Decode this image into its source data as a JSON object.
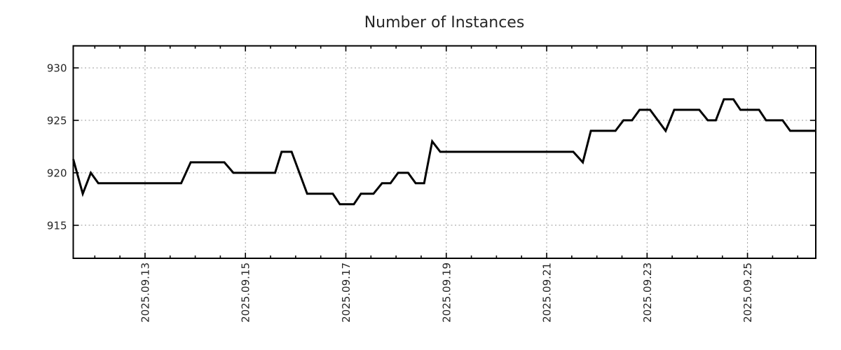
{
  "chart_data": {
    "type": "line",
    "title": "Number of Instances",
    "series_name": "number-of-instances",
    "legend": "none",
    "grid": "dotted",
    "x_axis": {
      "unit": "date (September 2025, day-of-month as decimal)",
      "range": [
        11.57,
        26.36
      ],
      "major_ticks": [
        {
          "day": 13,
          "label": "2025.09.13"
        },
        {
          "day": 15,
          "label": "2025.09.15"
        },
        {
          "day": 17,
          "label": "2025.09.17"
        },
        {
          "day": 19,
          "label": "2025.09.19"
        },
        {
          "day": 21,
          "label": "2025.09.21"
        },
        {
          "day": 23,
          "label": "2025.09.23"
        },
        {
          "day": 25,
          "label": "2025.09.25"
        }
      ],
      "minor_tick_interval_days": 0.5,
      "label_rotation_deg": -90
    },
    "y_axis": {
      "range": [
        911.85,
        932.1
      ],
      "ticks": [
        915,
        920,
        925,
        930
      ]
    },
    "points": [
      [
        11.57,
        921.3
      ],
      [
        11.76,
        918
      ],
      [
        11.92,
        920
      ],
      [
        12.07,
        919
      ],
      [
        13.72,
        919
      ],
      [
        13.91,
        921
      ],
      [
        14.58,
        921
      ],
      [
        14.76,
        920
      ],
      [
        15.59,
        920
      ],
      [
        15.72,
        922
      ],
      [
        15.92,
        922
      ],
      [
        16.23,
        918
      ],
      [
        16.74,
        918
      ],
      [
        16.88,
        917
      ],
      [
        17.16,
        917
      ],
      [
        17.3,
        918
      ],
      [
        17.55,
        918
      ],
      [
        17.72,
        919
      ],
      [
        17.89,
        919
      ],
      [
        18.04,
        920
      ],
      [
        18.24,
        920
      ],
      [
        18.39,
        919
      ],
      [
        18.56,
        919
      ],
      [
        18.72,
        923
      ],
      [
        18.88,
        922
      ],
      [
        21.53,
        922
      ],
      [
        21.72,
        921
      ],
      [
        21.88,
        924
      ],
      [
        22.37,
        924
      ],
      [
        22.53,
        925
      ],
      [
        22.7,
        925
      ],
      [
        22.85,
        926
      ],
      [
        23.06,
        926
      ],
      [
        23.37,
        924
      ],
      [
        23.54,
        926
      ],
      [
        24.04,
        926
      ],
      [
        24.21,
        925
      ],
      [
        24.37,
        925
      ],
      [
        24.53,
        927
      ],
      [
        24.72,
        927
      ],
      [
        24.86,
        926
      ],
      [
        25.23,
        926
      ],
      [
        25.37,
        925
      ],
      [
        25.7,
        925
      ],
      [
        25.85,
        924
      ],
      [
        26.36,
        924
      ]
    ],
    "style": {
      "line_color": "#000000",
      "line_width": 3,
      "border_color": "#000000",
      "grid_color": "#9a9a9a",
      "tick_color": "#000000",
      "label_color": "#262626",
      "title_color": "#262626",
      "background": "#ffffff"
    }
  }
}
